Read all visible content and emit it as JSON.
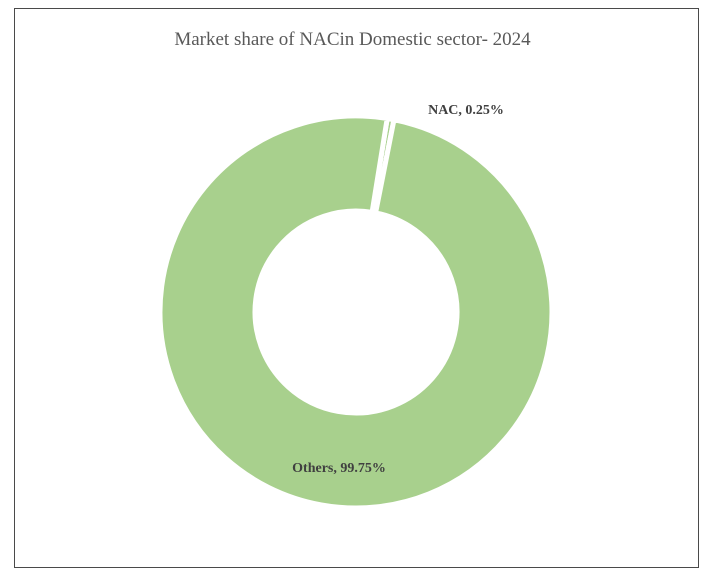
{
  "chart_data": {
    "type": "pie",
    "style": "donut",
    "title": "Market share of NACin Domestic sector- 2024",
    "categories": [
      "NAC",
      "Others"
    ],
    "values": [
      0.25,
      99.75
    ],
    "unit": "%",
    "data_labels": [
      "NAC, 0.25%",
      "Others, 99.75%"
    ],
    "slice_color": "#a8d08d",
    "separator_color": "#ffffff",
    "border_color": "#4a4a4a",
    "title_color": "#595959",
    "label_color": "#404040",
    "legend": "none"
  }
}
